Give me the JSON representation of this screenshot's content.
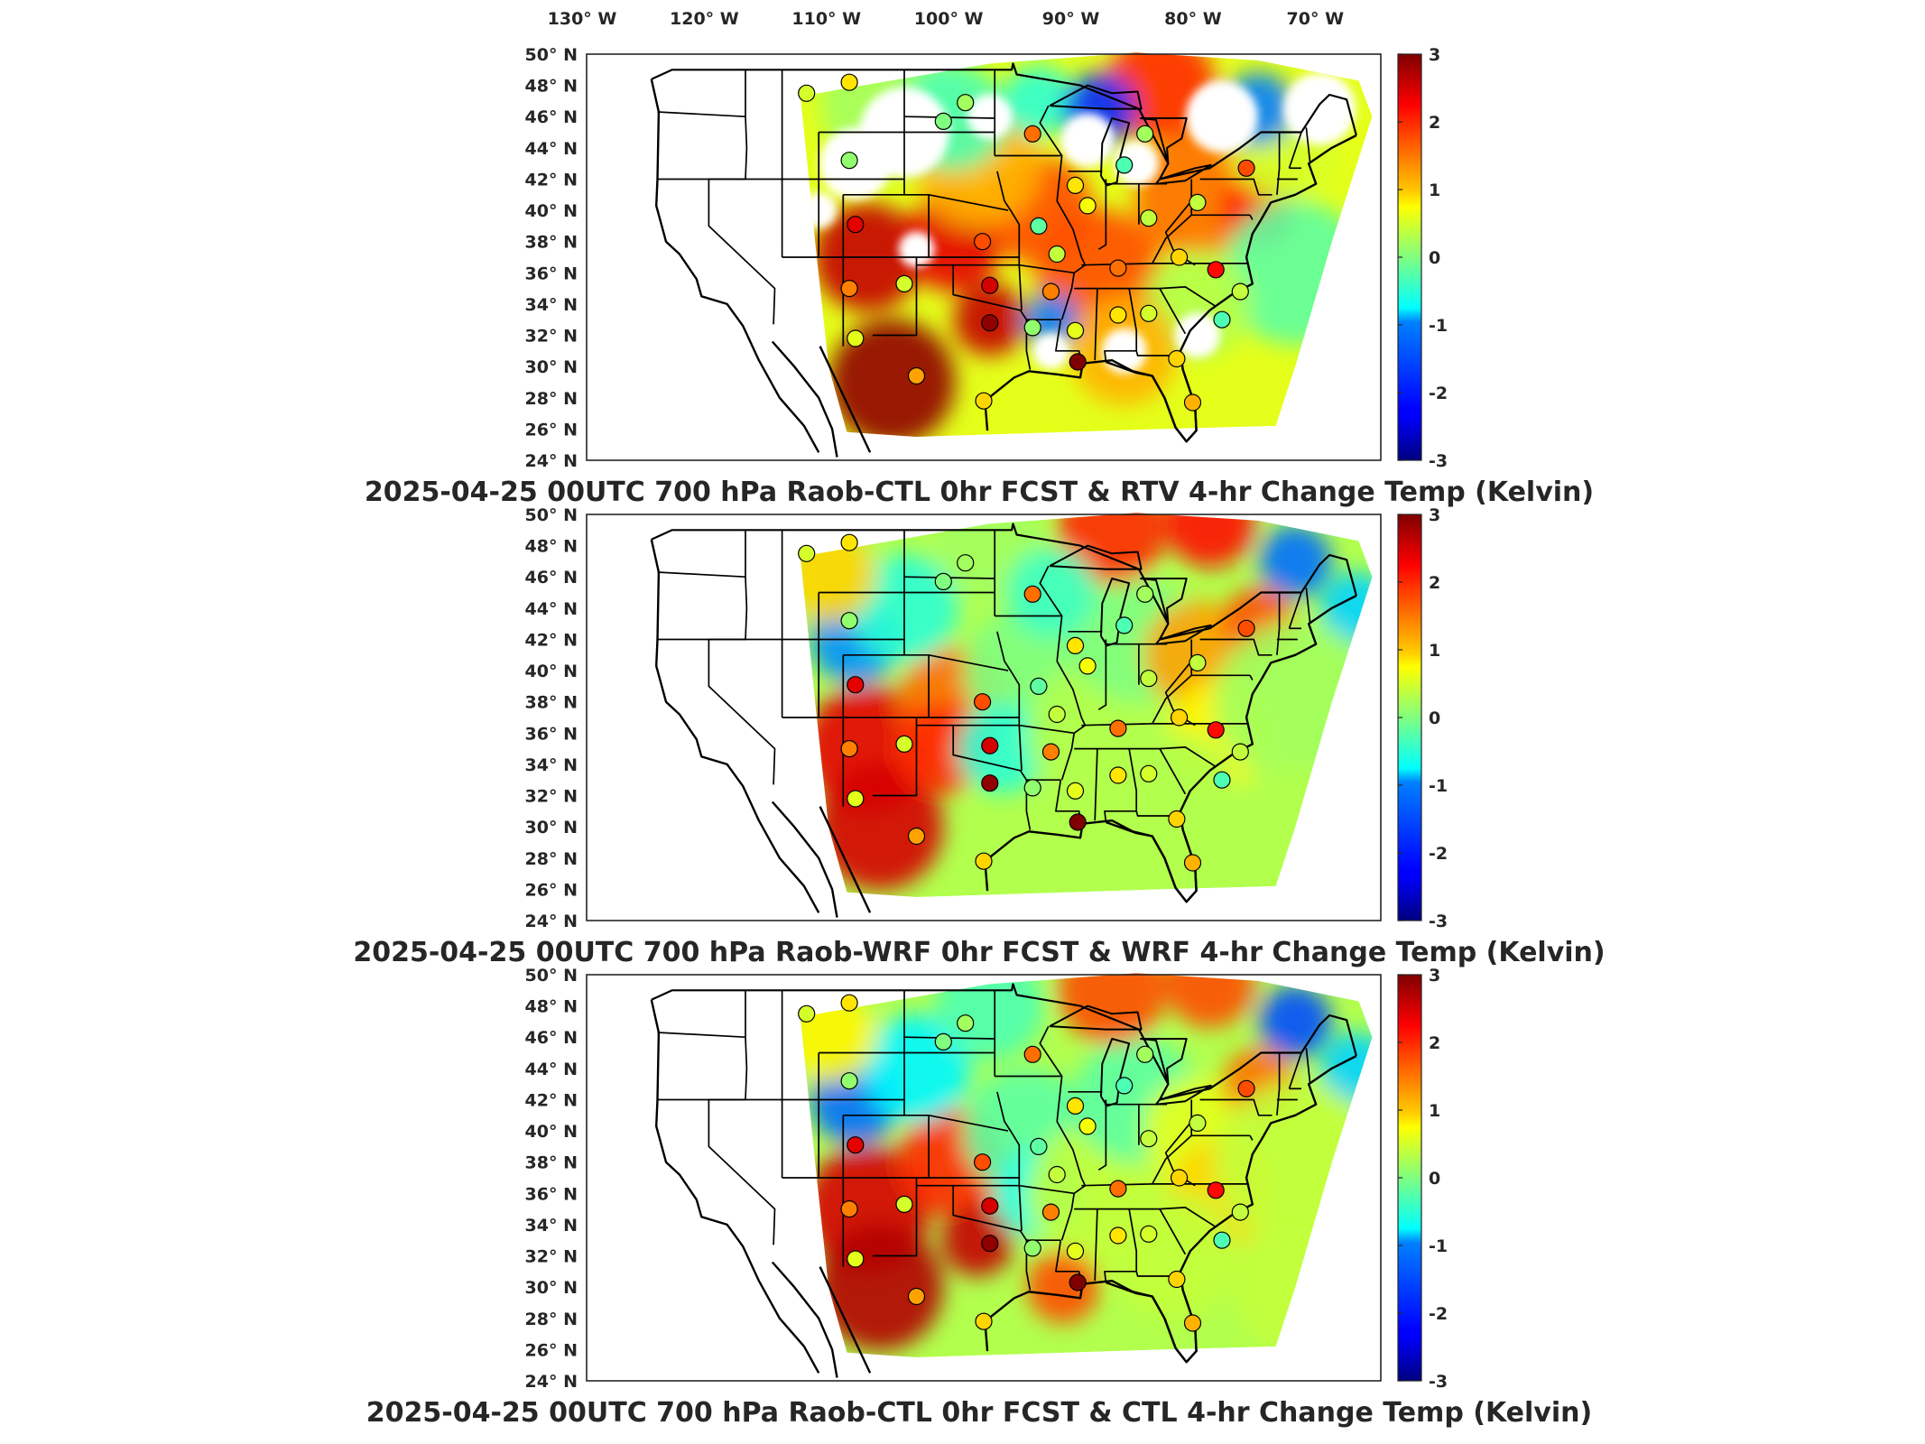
{
  "top_lon_labels": [
    "130",
    "120",
    "110",
    "100",
    "90",
    "80",
    "70"
  ],
  "lon_suffix": "W",
  "lat_labels": [
    "50",
    "48",
    "46",
    "44",
    "42",
    "40",
    "38",
    "36",
    "34",
    "32",
    "30",
    "28",
    "26",
    "24"
  ],
  "lat_suffix": "N",
  "degree_symbol": "°",
  "colorbar": {
    "min": -3,
    "max": 3,
    "ticks": [
      "3",
      "2",
      "1",
      "0",
      "-1",
      "-2",
      "-3"
    ],
    "colormap": "jet"
  },
  "panels": [
    {
      "title": "2025-04-25 00UTC 700 hPa Raob-CTL 0hr FCST & RTV 4-hr Change Temp (Kelvin)",
      "field_style": "rtv_gappy"
    },
    {
      "title": "2025-04-25 00UTC 700 hPa Raob-WRF 0hr FCST & WRF 4-hr Change Temp (Kelvin)",
      "field_style": "wrf_smooth"
    },
    {
      "title": "2025-04-25 00UTC 700 hPa Raob-CTL 0hr FCST & CTL 4-hr Change Temp (Kelvin)",
      "field_style": "ctl_smooth"
    }
  ],
  "chart_data": {
    "type": "heatmap",
    "projection": "lat-lon map, contiguous United States",
    "lon_range": [
      -130,
      -65
    ],
    "lat_range": [
      24,
      50
    ],
    "value_range": [
      -3,
      3
    ],
    "units": "Kelvin",
    "raob_stations": [
      {
        "lon": -112.0,
        "lat": 47.5,
        "value": 0.5
      },
      {
        "lon": -108.5,
        "lat": 48.2,
        "value": 0.9
      },
      {
        "lon": -99.0,
        "lat": 46.9,
        "value": 0.2
      },
      {
        "lon": -100.8,
        "lat": 45.7,
        "value": 0.0
      },
      {
        "lon": -93.5,
        "lat": 44.9,
        "value": 1.6
      },
      {
        "lon": -84.3,
        "lat": 44.9,
        "value": 0.2
      },
      {
        "lon": -108.5,
        "lat": 43.2,
        "value": 0.1
      },
      {
        "lon": -86.0,
        "lat": 42.9,
        "value": -0.3
      },
      {
        "lon": -90.0,
        "lat": 41.6,
        "value": 0.9
      },
      {
        "lon": -76.0,
        "lat": 42.7,
        "value": 1.8
      },
      {
        "lon": -89.0,
        "lat": 40.3,
        "value": 0.7
      },
      {
        "lon": -84.0,
        "lat": 39.5,
        "value": 0.4
      },
      {
        "lon": -80.0,
        "lat": 40.5,
        "value": 0.4
      },
      {
        "lon": -108.0,
        "lat": 39.1,
        "value": 2.4
      },
      {
        "lon": -97.6,
        "lat": 38.0,
        "value": 1.8
      },
      {
        "lon": -93.0,
        "lat": 39.0,
        "value": -0.2
      },
      {
        "lon": -91.5,
        "lat": 37.2,
        "value": 0.4
      },
      {
        "lon": -86.5,
        "lat": 36.3,
        "value": 1.6
      },
      {
        "lon": -81.5,
        "lat": 37.0,
        "value": 1.0
      },
      {
        "lon": -78.5,
        "lat": 36.2,
        "value": 2.2
      },
      {
        "lon": -108.5,
        "lat": 35.0,
        "value": 1.5
      },
      {
        "lon": -104.0,
        "lat": 35.3,
        "value": 0.5
      },
      {
        "lon": -97.0,
        "lat": 35.2,
        "value": 2.5
      },
      {
        "lon": -92.0,
        "lat": 34.8,
        "value": 1.5
      },
      {
        "lon": -97.0,
        "lat": 32.8,
        "value": 2.9
      },
      {
        "lon": -93.5,
        "lat": 32.5,
        "value": 0.1
      },
      {
        "lon": -90.0,
        "lat": 32.3,
        "value": 0.6
      },
      {
        "lon": -86.5,
        "lat": 33.3,
        "value": 0.9
      },
      {
        "lon": -84.0,
        "lat": 33.4,
        "value": 0.5
      },
      {
        "lon": -78.0,
        "lat": 33.0,
        "value": -0.3
      },
      {
        "lon": -76.5,
        "lat": 34.8,
        "value": 0.4
      },
      {
        "lon": -108.0,
        "lat": 31.8,
        "value": 0.6
      },
      {
        "lon": -103.0,
        "lat": 29.4,
        "value": 1.3
      },
      {
        "lon": -97.5,
        "lat": 27.8,
        "value": 1.0
      },
      {
        "lon": -89.8,
        "lat": 30.3,
        "value": 3.0
      },
      {
        "lon": -81.7,
        "lat": 30.5,
        "value": 1.0
      },
      {
        "lon": -80.4,
        "lat": 27.7,
        "value": 1.2
      }
    ]
  }
}
